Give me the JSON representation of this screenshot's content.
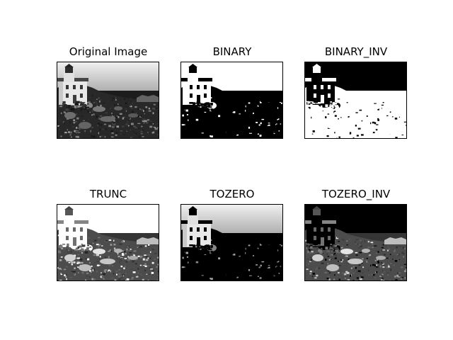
{
  "figure": {
    "background": "#ffffff",
    "panels": [
      {
        "id": "original",
        "title": "Original Image",
        "variant": "original"
      },
      {
        "id": "binary",
        "title": "BINARY",
        "variant": "binary"
      },
      {
        "id": "binary_inv",
        "title": "BINARY_INV",
        "variant": "binary_inv"
      },
      {
        "id": "trunc",
        "title": "TRUNC",
        "variant": "trunc"
      },
      {
        "id": "tozero",
        "title": "TOZERO",
        "variant": "tozero"
      },
      {
        "id": "tozero_inv",
        "title": "TOZERO_INV",
        "variant": "tozero_inv"
      }
    ]
  }
}
